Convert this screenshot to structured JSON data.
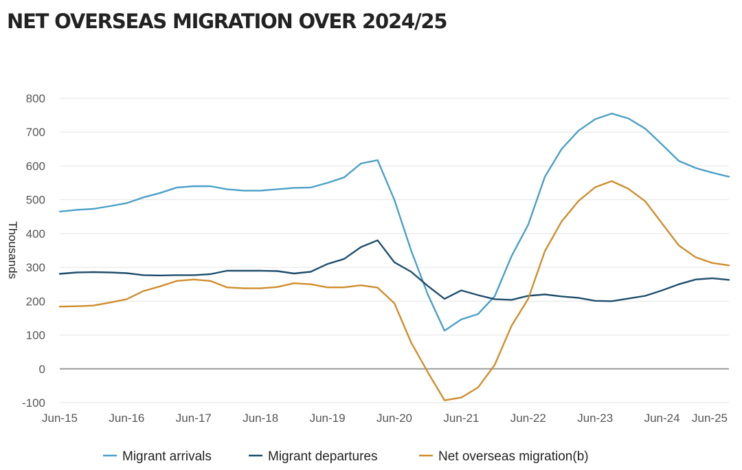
{
  "chart_data": {
    "type": "line",
    "title": "NET OVERSEAS MIGRATION OVER 2024/25",
    "ylabel": "Thousands",
    "ylim": [
      -100,
      800
    ],
    "yticks": [
      -100,
      0,
      100,
      200,
      300,
      400,
      500,
      600,
      700,
      800
    ],
    "x_tick_labels": [
      "Jun-15",
      "Jun-16",
      "Jun-17",
      "Jun-18",
      "Jun-19",
      "Jun-20",
      "Jun-21",
      "Jun-22",
      "Jun-23",
      "Jun-24",
      "Jun-25"
    ],
    "x_quarters": [
      "Jun-15",
      "Sep-15",
      "Dec-15",
      "Mar-16",
      "Jun-16",
      "Sep-16",
      "Dec-16",
      "Mar-17",
      "Jun-17",
      "Sep-17",
      "Dec-17",
      "Mar-18",
      "Jun-18",
      "Sep-18",
      "Dec-18",
      "Mar-19",
      "Jun-19",
      "Sep-19",
      "Dec-19",
      "Mar-20",
      "Jun-20",
      "Sep-20",
      "Dec-20",
      "Mar-21",
      "Jun-21",
      "Sep-21",
      "Dec-21",
      "Mar-22",
      "Jun-22",
      "Sep-22",
      "Dec-22",
      "Mar-23",
      "Jun-23",
      "Sep-23",
      "Dec-23",
      "Mar-24",
      "Jun-24",
      "Sep-24",
      "Dec-24",
      "Mar-25",
      "Jun-25"
    ],
    "grid": true,
    "legend_position": "bottom",
    "series": [
      {
        "name": "Migrant arrivals",
        "color": "#4a9fc6",
        "values": [
          465,
          470,
          473,
          481,
          490,
          507,
          520,
          536,
          540,
          540,
          531,
          527,
          527,
          531,
          535,
          536,
          550,
          566,
          607,
          617,
          500,
          350,
          220,
          113,
          146,
          162,
          215,
          333,
          426,
          568,
          650,
          704,
          738,
          755,
          740,
          710,
          663,
          615,
          594,
          580,
          568
        ]
      },
      {
        "name": "Migrant departures",
        "color": "#1e4d6b",
        "values": [
          281,
          285,
          286,
          285,
          283,
          277,
          276,
          277,
          277,
          280,
          290,
          290,
          290,
          289,
          282,
          287,
          310,
          325,
          360,
          380,
          315,
          287,
          245,
          207,
          232,
          218,
          206,
          204,
          216,
          220,
          214,
          210,
          201,
          200,
          208,
          216,
          232,
          250,
          264,
          268,
          263
        ]
      },
      {
        "name": "Net overseas migration(b)",
        "color": "#d08c2b",
        "values": [
          184,
          185,
          187,
          196,
          206,
          230,
          244,
          260,
          264,
          260,
          241,
          238,
          238,
          242,
          253,
          250,
          241,
          241,
          247,
          240,
          194,
          78,
          -10,
          -93,
          -85,
          -55,
          12,
          127,
          207,
          348,
          436,
          496,
          537,
          555,
          532,
          495,
          430,
          365,
          330,
          313,
          306
        ]
      }
    ]
  }
}
